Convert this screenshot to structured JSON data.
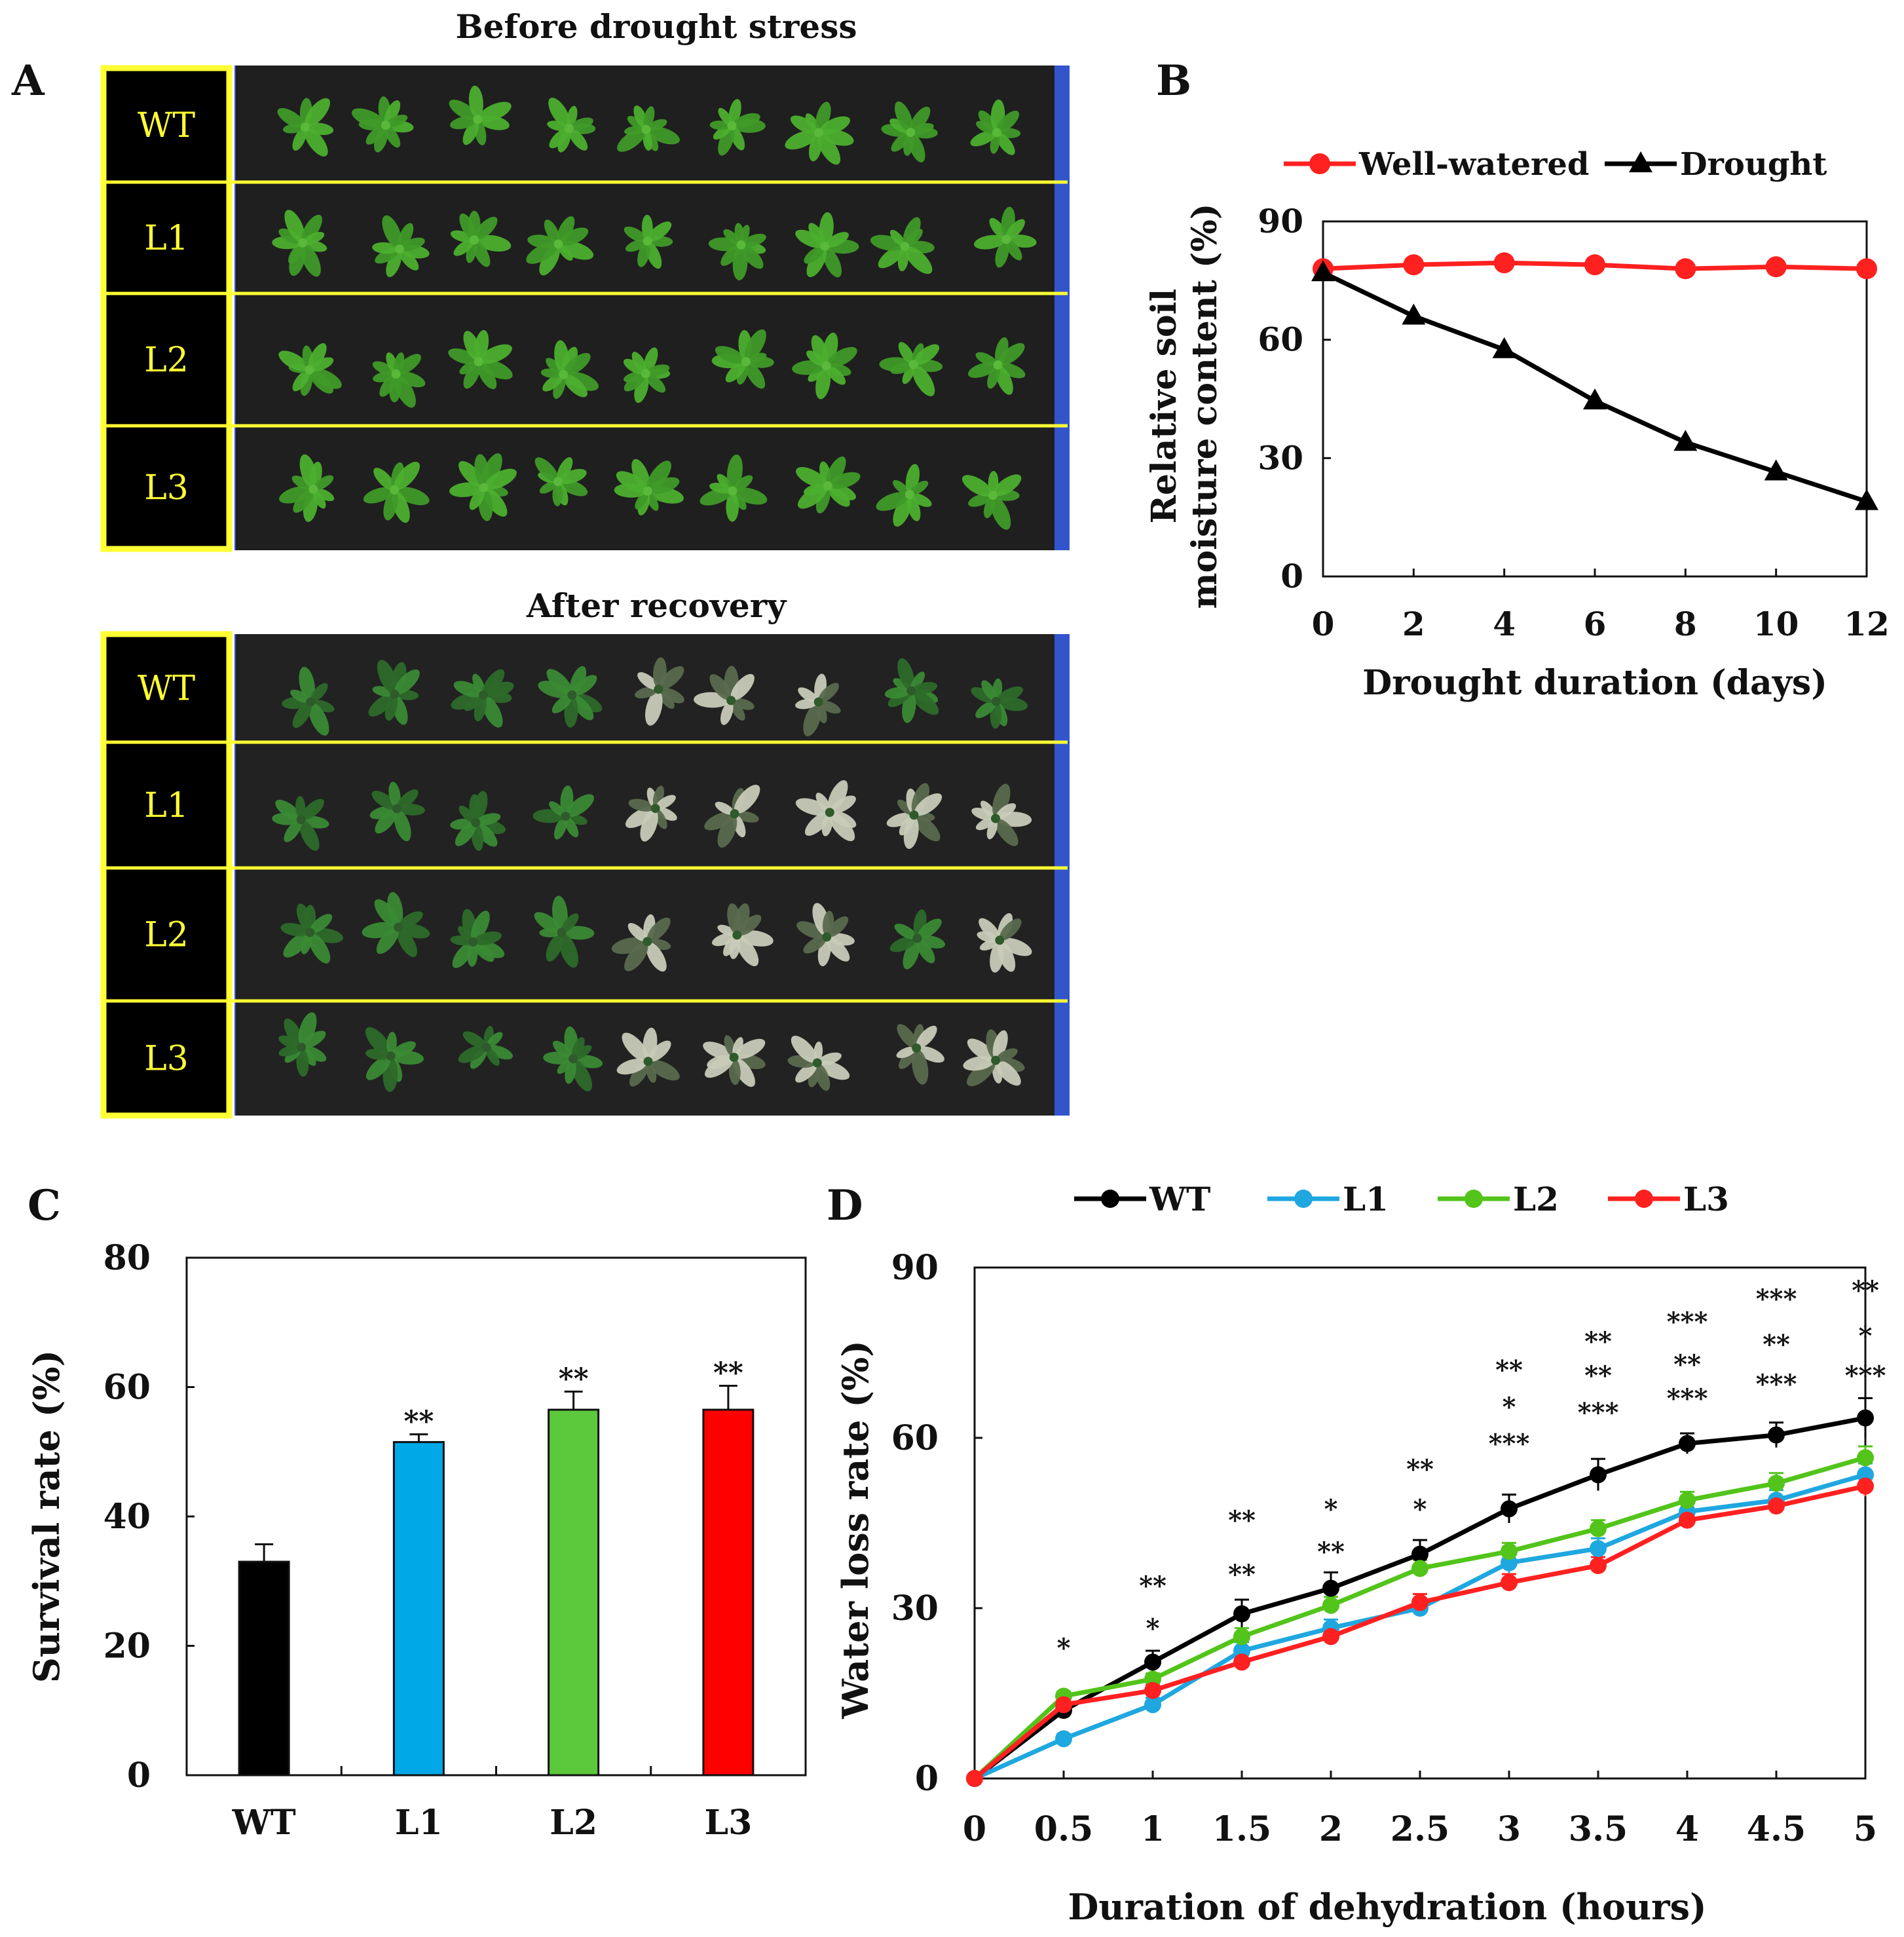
{
  "panel_labels": {
    "a": "A",
    "b": "B",
    "c": "C",
    "d": "D"
  },
  "panelA": {
    "top_title": "Before drought stress",
    "bottom_title": "After recovery",
    "rows": [
      "WT",
      "L1",
      "L2",
      "L3"
    ],
    "colors": {
      "highlight": "#ffff33",
      "label_bg": "#000000",
      "soil": "#1f1f1f",
      "tray": "#3355cc",
      "leaf_healthy": "#4caf2e",
      "leaf_dark": "#2d6a2a",
      "leaf_dead": "#c8cbb8"
    }
  },
  "chart_data": [
    {
      "id": "B",
      "type": "line",
      "title": "",
      "xlabel": "Drought duration (days)",
      "ylabel_lines": [
        "Relative soil",
        "moisture content (%)"
      ],
      "x": [
        0,
        2,
        4,
        6,
        8,
        10,
        12
      ],
      "xlim": [
        0,
        12
      ],
      "ylim": [
        0,
        90
      ],
      "yticks": [
        0,
        30,
        60,
        90
      ],
      "legend_position": "top",
      "series": [
        {
          "name": "Well-watered",
          "color": "#ff2020",
          "marker": "circle",
          "values": [
            78,
            79,
            79.5,
            79,
            78,
            78.5,
            78
          ]
        },
        {
          "name": "Drought",
          "color": "#000000",
          "marker": "triangle",
          "values": [
            77,
            66,
            57.5,
            44.5,
            34,
            26.5,
            19
          ]
        }
      ]
    },
    {
      "id": "C",
      "type": "bar",
      "title": "",
      "xlabel": "",
      "ylabel": "Survival rate (%)",
      "categories": [
        "WT",
        "L1",
        "L2",
        "L3"
      ],
      "values": [
        33,
        51.5,
        56.5,
        56.5
      ],
      "errors": [
        2.7,
        1.2,
        2.8,
        3.7
      ],
      "colors": [
        "#000000",
        "#00a8e8",
        "#5cc83c",
        "#ff0000"
      ],
      "annotations": [
        "",
        "**",
        "**",
        "**"
      ],
      "ylim": [
        0,
        80
      ],
      "yticks": [
        0,
        20,
        40,
        60,
        80
      ]
    },
    {
      "id": "D",
      "type": "line",
      "title": "",
      "xlabel": "Duration of dehydration (hours)",
      "ylabel": "Water loss rate (%)",
      "x": [
        0,
        0.5,
        1,
        1.5,
        2,
        2.5,
        3,
        3.5,
        4,
        4.5,
        5
      ],
      "xlim": [
        0,
        5
      ],
      "ylim": [
        0,
        90
      ],
      "yticks": [
        0,
        30,
        60,
        90
      ],
      "legend_position": "top",
      "series": [
        {
          "name": "WT",
          "color": "#000000",
          "values": [
            0,
            12,
            20.5,
            29,
            33.5,
            39.5,
            47.5,
            53.5,
            59,
            60.5,
            63.5
          ],
          "errors": [
            0,
            1.3,
            2,
            2.5,
            2.8,
            2.5,
            2.5,
            2.8,
            1.8,
            2.2,
            3.5
          ]
        },
        {
          "name": "L1",
          "color": "#1fa7e0",
          "values": [
            0,
            7,
            13,
            22.5,
            26.5,
            30,
            38,
            40.5,
            47,
            49,
            53.5
          ],
          "errors": [
            0,
            0.8,
            1.2,
            1.5,
            1.5,
            1.3,
            1.8,
            1.8,
            1.5,
            1.8,
            2
          ]
        },
        {
          "name": "L2",
          "color": "#52c41a",
          "values": [
            0,
            14.5,
            17.5,
            25,
            30.5,
            37,
            40,
            44,
            49,
            52,
            56.5
          ],
          "errors": [
            0,
            0.8,
            1,
            1.5,
            1.5,
            1.5,
            1.5,
            1.5,
            1.5,
            1.8,
            2
          ]
        },
        {
          "name": "L3",
          "color": "#ff2020",
          "values": [
            0,
            13,
            15.5,
            20.5,
            25,
            31,
            34.5,
            37.5,
            45.5,
            48,
            51.5
          ],
          "errors": [
            0,
            0.8,
            1,
            1.2,
            1.2,
            1.5,
            1.5,
            1.5,
            1.5,
            1.5,
            1.8
          ]
        }
      ],
      "significance": [
        {
          "x": 0.5,
          "marks": [
            {
              "text": "*",
              "color": "#1fa7e0",
              "y": 23
            }
          ]
        },
        {
          "x": 1,
          "marks": [
            {
              "text": "**",
              "color": "#1fa7e0",
              "y": 34
            },
            {
              "text": "*",
              "color": "#ff2020",
              "y": 26.5
            }
          ]
        },
        {
          "x": 1.5,
          "marks": [
            {
              "text": "**",
              "color": "#1fa7e0",
              "y": 45.5
            },
            {
              "text": "**",
              "color": "#ff2020",
              "y": 36
            }
          ]
        },
        {
          "x": 2,
          "marks": [
            {
              "text": "*",
              "color": "#1fa7e0",
              "y": 47.5
            },
            {
              "text": "**",
              "color": "#ff2020",
              "y": 40
            }
          ]
        },
        {
          "x": 2.5,
          "marks": [
            {
              "text": "**",
              "color": "#1fa7e0",
              "y": 54.5
            },
            {
              "text": "*",
              "color": "#ff2020",
              "y": 47.5
            }
          ]
        },
        {
          "x": 3,
          "marks": [
            {
              "text": "**",
              "color": "#1fa7e0",
              "y": 72
            },
            {
              "text": "*",
              "color": "#52c41a",
              "y": 65.5
            },
            {
              "text": "***",
              "color": "#ff2020",
              "y": 59
            }
          ]
        },
        {
          "x": 3.5,
          "marks": [
            {
              "text": "**",
              "color": "#1fa7e0",
              "y": 77
            },
            {
              "text": "**",
              "color": "#52c41a",
              "y": 71
            },
            {
              "text": "***",
              "color": "#ff2020",
              "y": 64.5
            }
          ]
        },
        {
          "x": 4,
          "marks": [
            {
              "text": "***",
              "color": "#1fa7e0",
              "y": 80.5
            },
            {
              "text": "**",
              "color": "#52c41a",
              "y": 73
            },
            {
              "text": "***",
              "color": "#ff2020",
              "y": 67
            }
          ]
        },
        {
          "x": 4.5,
          "marks": [
            {
              "text": "***",
              "color": "#1fa7e0",
              "y": 84.5
            },
            {
              "text": "**",
              "color": "#52c41a",
              "y": 76.5
            },
            {
              "text": "***",
              "color": "#ff2020",
              "y": 69.5
            }
          ]
        },
        {
          "x": 5,
          "marks": [
            {
              "text": "**",
              "color": "#1fa7e0",
              "y": 86
            },
            {
              "text": "*",
              "color": "#52c41a",
              "y": 78
            },
            {
              "text": "***",
              "color": "#ff2020",
              "y": 71
            }
          ]
        }
      ]
    }
  ]
}
